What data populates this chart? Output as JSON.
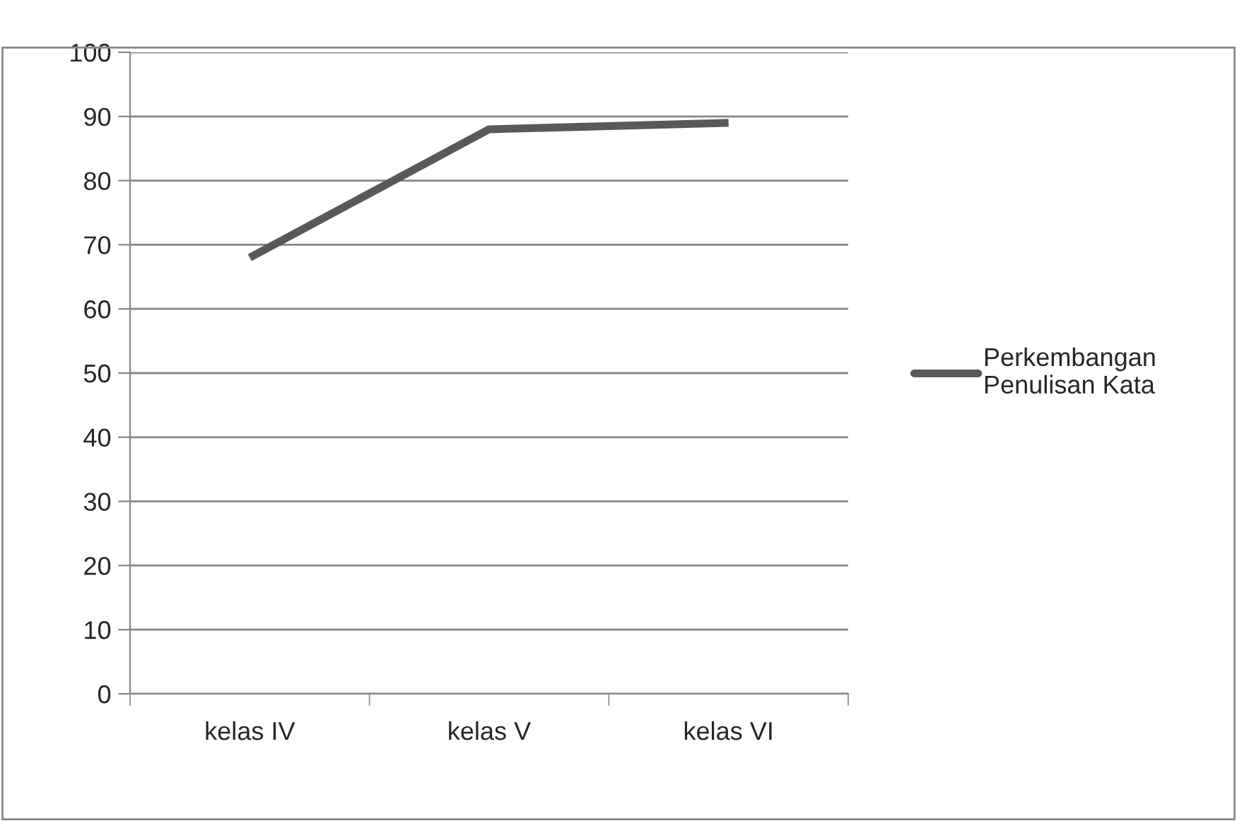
{
  "chart_data": {
    "type": "line",
    "categories": [
      "kelas IV",
      "kelas V",
      "kelas VI"
    ],
    "series": [
      {
        "name": "Perkembangan\nPenulisan Kata",
        "color": "#595959",
        "values": [
          68,
          88,
          89
        ]
      }
    ],
    "ylim": [
      0,
      100
    ],
    "yticks": [
      0,
      10,
      20,
      30,
      40,
      50,
      60,
      70,
      80,
      90,
      100
    ],
    "grid": "y",
    "legend": "right",
    "marker": "none",
    "line_style": "solid"
  }
}
